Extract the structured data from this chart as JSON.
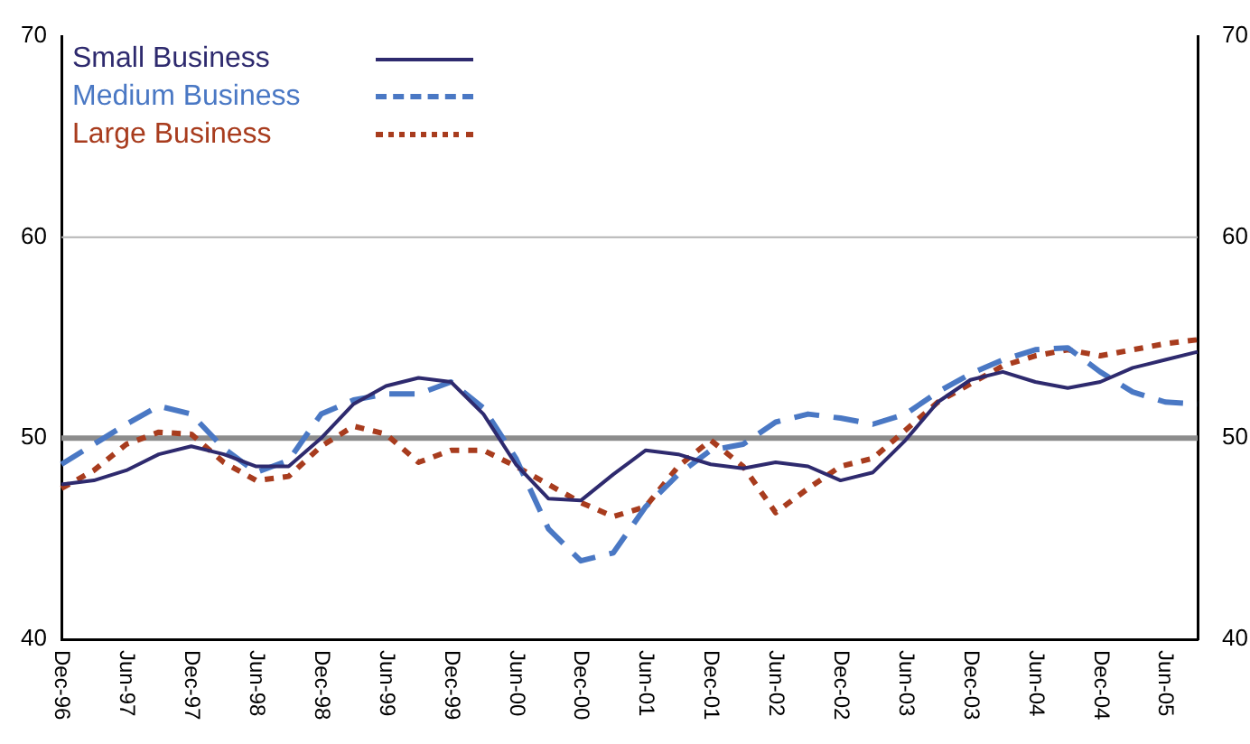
{
  "chart_data": {
    "type": "line",
    "categories": [
      "Dec-96",
      null,
      "Jun-97",
      null,
      "Dec-97",
      null,
      "Jun-98",
      null,
      "Dec-98",
      null,
      "Jun-99",
      null,
      "Dec-99",
      null,
      "Jun-00",
      null,
      "Dec-00",
      null,
      "Jun-01",
      null,
      "Dec-01",
      null,
      "Jun-02",
      null,
      "Dec-02",
      null,
      "Jun-03",
      null,
      "Dec-03",
      null,
      "Jun-04",
      null,
      "Dec-04",
      null,
      "Jun-05",
      null
    ],
    "series": [
      {
        "name": "Small Business",
        "color": "#2e2a6e",
        "line_style": "solid",
        "values": [
          47.7,
          47.9,
          48.4,
          49.2,
          49.6,
          49.2,
          48.6,
          48.6,
          50.0,
          51.7,
          52.6,
          53.0,
          52.8,
          51.2,
          48.7,
          47.0,
          46.9,
          48.2,
          49.4,
          49.2,
          48.7,
          48.5,
          48.8,
          48.6,
          47.9,
          48.3,
          49.9,
          51.8,
          52.9,
          53.3,
          52.8,
          52.5,
          52.8,
          53.5,
          53.9,
          54.3
        ]
      },
      {
        "name": "Medium Business",
        "color": "#4a78c4",
        "line_style": "dashed",
        "values": [
          48.7,
          49.7,
          50.7,
          51.6,
          51.2,
          49.5,
          48.3,
          48.9,
          51.2,
          51.9,
          52.2,
          52.2,
          52.8,
          51.5,
          49.0,
          45.5,
          43.9,
          44.3,
          46.6,
          48.2,
          49.4,
          49.7,
          50.8,
          51.2,
          51.0,
          50.7,
          51.2,
          52.3,
          53.2,
          53.9,
          54.4,
          54.5,
          53.3,
          52.3,
          51.8,
          51.7
        ]
      },
      {
        "name": "Large Business",
        "color": "#a83c1e",
        "line_style": "dotted",
        "values": [
          47.5,
          48.4,
          49.7,
          50.3,
          50.2,
          48.8,
          47.9,
          48.1,
          49.6,
          50.6,
          50.2,
          48.8,
          49.4,
          49.4,
          48.6,
          47.7,
          46.8,
          46.1,
          46.6,
          48.6,
          49.9,
          48.6,
          46.3,
          47.5,
          48.6,
          49.0,
          50.4,
          51.8,
          52.7,
          53.6,
          54.1,
          54.4,
          54.1,
          54.4,
          54.7,
          54.9
        ]
      }
    ],
    "ylim": [
      40,
      70
    ],
    "yticks": [
      40,
      50,
      60,
      70
    ],
    "y2lim": [
      40,
      70
    ],
    "y2ticks": [
      40,
      50,
      60,
      70
    ],
    "legend": "top left",
    "marker": "none",
    "ref_lines": [
      {
        "axis": "y",
        "value": 50,
        "label": null,
        "color": "#8c8c8c"
      },
      {
        "axis": "y",
        "value": 60,
        "label": null,
        "color": "#b4b4b4"
      }
    ]
  }
}
